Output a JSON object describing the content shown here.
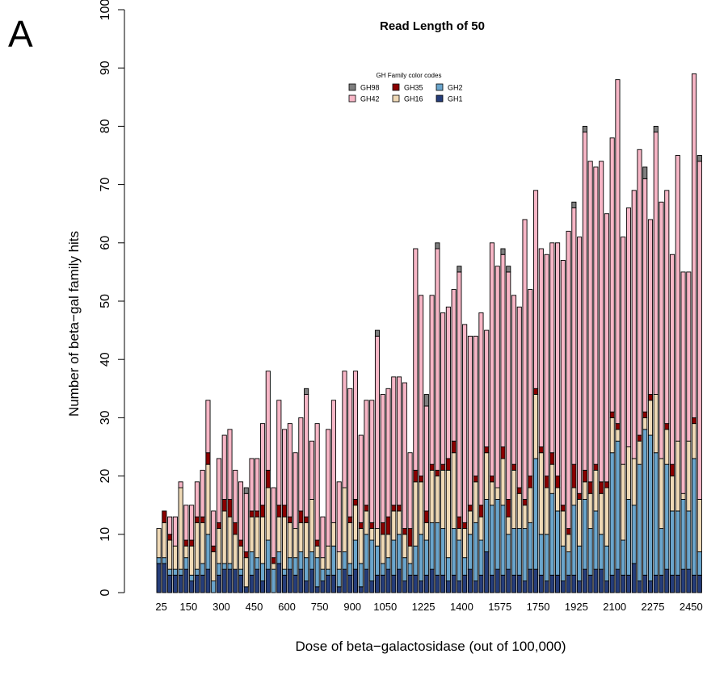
{
  "panel_letter": "A",
  "chart_data": {
    "type": "bar",
    "stacked": true,
    "title": "Read Length of 50",
    "xlabel": "Dose of beta−galactosidase (out of 100,000)",
    "ylabel": "Number of beta−gal family hits",
    "ylim": [
      0,
      100
    ],
    "yticks": [
      "0",
      "10",
      "20",
      "30",
      "40",
      "50",
      "60",
      "70",
      "80",
      "90",
      "100"
    ],
    "xtick_labels": [
      "25",
      "150",
      "300",
      "450",
      "600",
      "750",
      "900",
      "1050",
      "1225",
      "1400",
      "1575",
      "1750",
      "1925",
      "2100",
      "2275",
      "2450"
    ],
    "legend": {
      "title": "GH Family color codes",
      "position": "top-center",
      "entries": [
        {
          "name": "GH98",
          "color": "#7f7f7f"
        },
        {
          "name": "GH35",
          "color": "#8b0000"
        },
        {
          "name": "GH2",
          "color": "#6aa5cc"
        },
        {
          "name": "GH42",
          "color": "#f7b6c6"
        },
        {
          "name": "GH16",
          "color": "#efd9b6"
        },
        {
          "name": "GH1",
          "color": "#253d7a"
        }
      ]
    },
    "x": [
      25,
      50,
      75,
      100,
      125,
      150,
      175,
      200,
      225,
      250,
      275,
      300,
      325,
      350,
      375,
      400,
      425,
      450,
      475,
      500,
      525,
      550,
      575,
      600,
      625,
      650,
      675,
      700,
      725,
      750,
      775,
      800,
      825,
      850,
      875,
      900,
      925,
      950,
      975,
      1000,
      1025,
      1050,
      1075,
      1100,
      1125,
      1150,
      1175,
      1200,
      1225,
      1250,
      1275,
      1300,
      1325,
      1350,
      1375,
      1400,
      1425,
      1450,
      1475,
      1500,
      1525,
      1550,
      1575,
      1600,
      1625,
      1650,
      1675,
      1700,
      1725,
      1750,
      1775,
      1800,
      1825,
      1850,
      1875,
      1900,
      1925,
      1950,
      1975,
      2000,
      2025,
      2050,
      2075,
      2100,
      2125,
      2150,
      2175,
      2200,
      2225,
      2250,
      2275,
      2300,
      2325,
      2350,
      2375,
      2400,
      2425,
      2450,
      2475,
      2500
    ],
    "series": [
      {
        "name": "GH1",
        "values": [
          5,
          5,
          3,
          3,
          3,
          4,
          2,
          3,
          3,
          4,
          0,
          3,
          4,
          4,
          4,
          3,
          1,
          3,
          4,
          2,
          4,
          0,
          5,
          3,
          4,
          3,
          4,
          2,
          4,
          1,
          2,
          3,
          3,
          1,
          4,
          3,
          4,
          1,
          4,
          2,
          3,
          3,
          4,
          3,
          4,
          2,
          3,
          3,
          2,
          3,
          4,
          3,
          3,
          2,
          3,
          2,
          3,
          4,
          2,
          3,
          7,
          3,
          4,
          3,
          4,
          3,
          3,
          2,
          4,
          4,
          3,
          2,
          3,
          3,
          2,
          3,
          3,
          2,
          4,
          3,
          4,
          4,
          2,
          3,
          4,
          3,
          3,
          5,
          2,
          3,
          2,
          3,
          3,
          4,
          3,
          3,
          4,
          4,
          3,
          3
        ]
      },
      {
        "name": "GH2",
        "values": [
          1,
          1,
          1,
          1,
          1,
          2,
          1,
          1,
          2,
          6,
          2,
          2,
          1,
          1,
          0,
          1,
          0,
          4,
          2,
          3,
          5,
          4,
          2,
          1,
          2,
          3,
          3,
          4,
          3,
          5,
          2,
          1,
          5,
          3,
          3,
          2,
          5,
          4,
          6,
          7,
          5,
          2,
          2,
          6,
          6,
          4,
          2,
          5,
          8,
          6,
          8,
          9,
          8,
          4,
          8,
          7,
          3,
          6,
          10,
          6,
          9,
          12,
          12,
          12,
          6,
          8,
          8,
          9,
          8,
          19,
          7,
          8,
          14,
          11,
          6,
          4,
          12,
          6,
          12,
          8,
          10,
          6,
          6,
          21,
          22,
          6,
          13,
          10,
          20,
          25,
          25,
          21,
          8,
          18,
          11,
          11,
          12,
          10,
          20,
          4
        ]
      },
      {
        "name": "GH16",
        "values": [
          5,
          6,
          5,
          4,
          14,
          2,
          5,
          8,
          7,
          12,
          5,
          6,
          9,
          8,
          6,
          4,
          5,
          6,
          7,
          8,
          9,
          1,
          6,
          9,
          6,
          5,
          5,
          6,
          9,
          2,
          2,
          4,
          4,
          3,
          11,
          7,
          6,
          6,
          4,
          2,
          3,
          5,
          4,
          5,
          4,
          4,
          3,
          11,
          9,
          3,
          9,
          8,
          10,
          15,
          13,
          2,
          5,
          4,
          7,
          4,
          8,
          4,
          2,
          8,
          3,
          10,
          6,
          4,
          6,
          11,
          14,
          8,
          5,
          4,
          6,
          3,
          3,
          8,
          3,
          6,
          7,
          7,
          10,
          6,
          2,
          13,
          9,
          8,
          4,
          2,
          6,
          10,
          12,
          6,
          6,
          12,
          1,
          12,
          6,
          9
        ]
      },
      {
        "name": "GH35",
        "values": [
          0,
          2,
          1,
          0,
          0,
          1,
          1,
          1,
          1,
          2,
          1,
          1,
          2,
          3,
          2,
          1,
          1,
          1,
          1,
          2,
          3,
          1,
          2,
          2,
          1,
          0,
          2,
          1,
          0,
          1,
          0,
          0,
          0,
          0,
          0,
          1,
          1,
          1,
          1,
          1,
          0,
          2,
          3,
          1,
          1,
          1,
          3,
          2,
          1,
          2,
          1,
          1,
          1,
          2,
          2,
          2,
          1,
          1,
          1,
          2,
          1,
          1,
          0,
          2,
          3,
          1,
          1,
          1,
          2,
          1,
          1,
          2,
          2,
          2,
          1,
          1,
          4,
          1,
          2,
          2,
          1,
          2,
          1,
          1,
          1,
          0,
          0,
          0,
          1,
          1,
          1,
          0,
          0,
          1,
          2,
          0,
          0,
          0,
          1,
          0
        ]
      },
      {
        "name": "GH42",
        "values": [
          0,
          0,
          3,
          5,
          1,
          6,
          6,
          6,
          8,
          9,
          6,
          11,
          11,
          12,
          9,
          10,
          10,
          9,
          9,
          14,
          17,
          12,
          18,
          13,
          16,
          13,
          16,
          21,
          10,
          20,
          7,
          20,
          21,
          12,
          20,
          22,
          22,
          15,
          18,
          21,
          33,
          22,
          22,
          22,
          22,
          25,
          13,
          38,
          31,
          18,
          29,
          38,
          26,
          26,
          26,
          42,
          34,
          29,
          24,
          33,
          20,
          40,
          38,
          33,
          39,
          29,
          31,
          48,
          32,
          34,
          34,
          38,
          36,
          40,
          42,
          51,
          44,
          44,
          58,
          55,
          51,
          55,
          46,
          47,
          59,
          39,
          41,
          46,
          49,
          40,
          30,
          45,
          44,
          40,
          36,
          49,
          38,
          29,
          59,
          58
        ]
      },
      {
        "name": "GH98",
        "values": [
          0,
          0,
          0,
          0,
          0,
          0,
          0,
          0,
          0,
          0,
          0,
          0,
          0,
          0,
          0,
          0,
          1,
          0,
          0,
          0,
          0,
          0,
          0,
          0,
          0,
          0,
          0,
          1,
          0,
          0,
          0,
          0,
          0,
          0,
          0,
          0,
          0,
          0,
          0,
          0,
          1,
          0,
          0,
          0,
          0,
          0,
          0,
          0,
          0,
          2,
          0,
          1,
          0,
          0,
          0,
          1,
          0,
          0,
          0,
          0,
          0,
          0,
          0,
          1,
          1,
          0,
          0,
          0,
          0,
          0,
          0,
          0,
          0,
          0,
          0,
          0,
          1,
          0,
          1,
          0,
          0,
          0,
          0,
          0,
          0,
          0,
          0,
          0,
          0,
          2,
          0,
          1,
          0,
          0,
          0,
          0,
          0,
          0,
          0,
          1
        ]
      }
    ]
  }
}
